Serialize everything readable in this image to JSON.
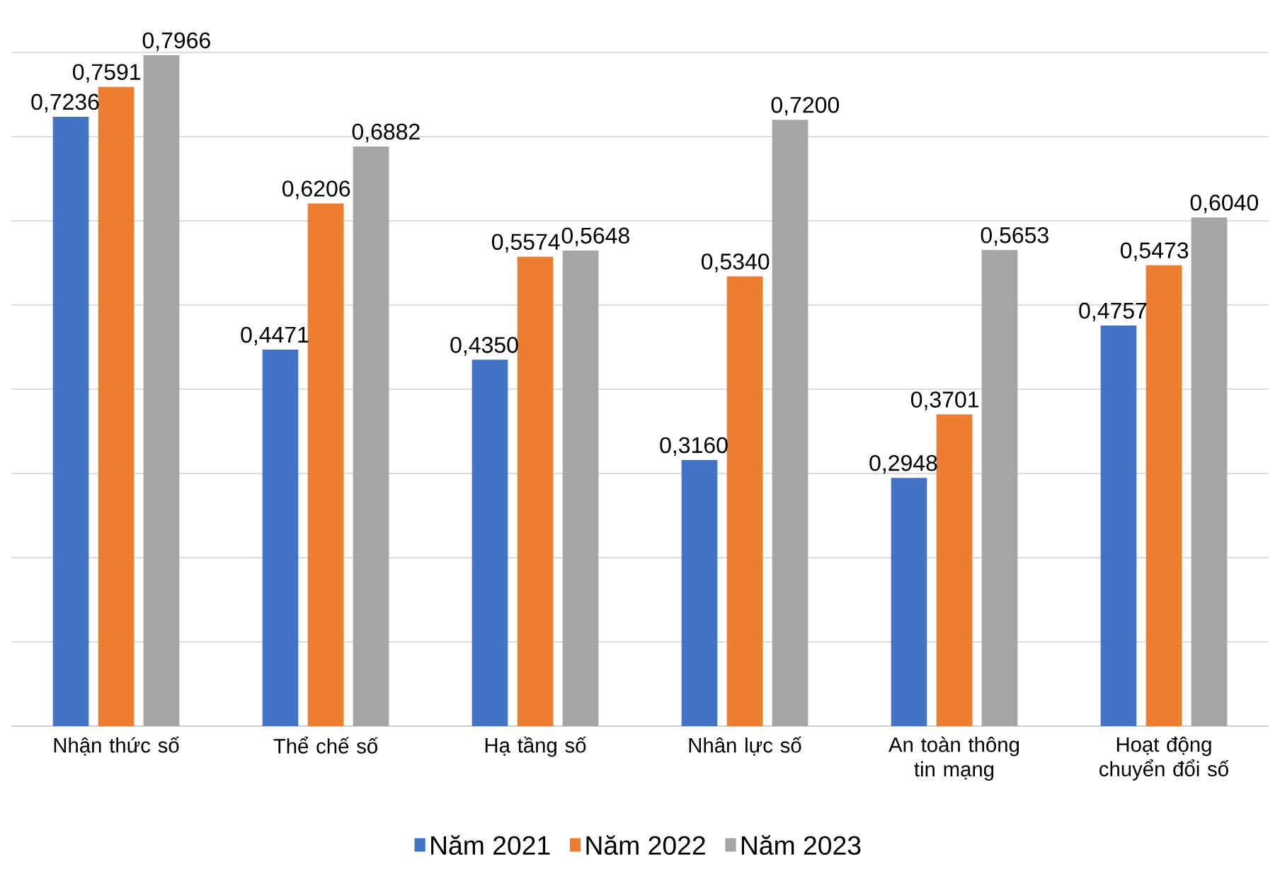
{
  "chart_data": {
    "type": "bar",
    "categories": [
      "Nhận thức số",
      "Thể chế số",
      "Hạ tầng số",
      "Nhân lực số",
      "An toàn thông tin mạng",
      "Hoạt động chuyển đổi số"
    ],
    "series": [
      {
        "name": "Năm 2021",
        "color": "#4472c4",
        "values": [
          0.7236,
          0.4471,
          0.435,
          0.316,
          0.2948,
          0.4757
        ],
        "value_labels": [
          "0,7236",
          "0,4471",
          "0,4350",
          "0,3160",
          "0,2948",
          "0,4757"
        ]
      },
      {
        "name": "Năm 2022",
        "color": "#ed7d31",
        "values": [
          0.7591,
          0.6206,
          0.5574,
          0.534,
          0.3701,
          0.5473
        ],
        "value_labels": [
          "0,7591",
          "0,6206",
          "0,5574",
          "0,5340",
          "0,3701",
          "0,5473"
        ]
      },
      {
        "name": "Năm 2023",
        "color": "#a5a5a5",
        "values": [
          0.7966,
          0.6882,
          0.5648,
          0.72,
          0.5653,
          0.604
        ],
        "value_labels": [
          "0,7966",
          "0,6882",
          "0,5648",
          "0,7200",
          "0,5653",
          "0,6040"
        ]
      }
    ],
    "ylim": [
      0,
      0.8
    ],
    "grid": "y",
    "tick_labels": "x",
    "legend": "bottom"
  }
}
